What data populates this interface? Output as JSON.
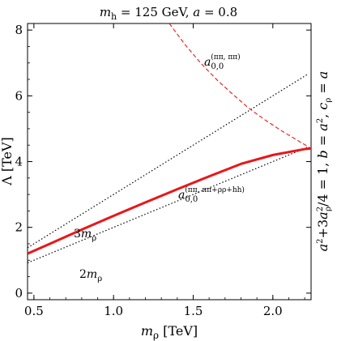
{
  "chart_data": {
    "type": "line",
    "title_prefix": "m",
    "title_sub": "h",
    "title_rest": " = 125 GeV, ",
    "title_a": "a",
    "title_a_rest": " = 0.8",
    "xlabel_var": "m",
    "xlabel_sub": "ρ",
    "xlabel_unit": " [TeV]",
    "ylabel": "Λ [TeV]",
    "right_label": "a²+3a²ρ/4 = 1, b = a², cρ = a",
    "right_label_parts": {
      "p1": "a",
      "p1_sup": "2",
      "p2": "+3",
      "p3": "a",
      "p3_sup": "2",
      "p3_sub": "ρ",
      "p4": "/4 = 1, ",
      "p5": "b",
      "p6": " = ",
      "p7": "a",
      "p7_sup": "2",
      "p8": ", ",
      "p9": "c",
      "p9_sub": "ρ",
      "p10": " = ",
      "p11": "a"
    },
    "xlim": [
      0.46,
      2.24
    ],
    "ylim": [
      -0.2,
      8.2
    ],
    "xticks": [
      0.5,
      1.0,
      1.5,
      2.0
    ],
    "xtick_labels": [
      "0.5",
      "1.0",
      "1.5",
      "2.0"
    ],
    "yticks": [
      0,
      2,
      4,
      6,
      8
    ],
    "ytick_labels": [
      "0",
      "2",
      "4",
      "6",
      "8"
    ],
    "grid": false,
    "series": [
      {
        "name": "3mρ",
        "color": "#000000",
        "style": "dotted",
        "x": [
          0.46,
          2.22
        ],
        "y": [
          1.38,
          6.66
        ]
      },
      {
        "name": "2mρ",
        "color": "#000000",
        "style": "dotted",
        "x": [
          0.46,
          2.22
        ],
        "y": [
          0.92,
          4.44
        ]
      },
      {
        "name": "a0,0 (ππ, ππ+ρρ+hh)",
        "color": "#e8171a",
        "style": "solid-thick",
        "x": [
          0.46,
          0.6,
          0.8,
          1.0,
          1.2,
          1.4,
          1.6,
          1.8,
          2.0,
          2.2,
          2.24
        ],
        "y": [
          1.2,
          1.5,
          1.93,
          2.35,
          2.76,
          3.16,
          3.55,
          3.93,
          4.2,
          4.38,
          4.4
        ]
      },
      {
        "name": "a0,0 (ππ, ππ)",
        "color": "#e8171a",
        "style": "dashed",
        "x": [
          1.35,
          1.45,
          1.55,
          1.65,
          1.75,
          1.85,
          1.95,
          2.05,
          2.15,
          2.24
        ],
        "y": [
          8.2,
          7.55,
          6.98,
          6.48,
          6.04,
          5.62,
          5.27,
          4.95,
          4.66,
          4.4
        ]
      }
    ],
    "annotations": {
      "dashed_label_base": "a",
      "dashed_label_sub": "0,0",
      "dashed_label_sup": "(ππ, ππ)",
      "solid_label_base": "a",
      "solid_label_sub": "0,0",
      "solid_label_sup": "(ππ, ππ+ρρ+hh)",
      "three_m_coef": "3",
      "three_m_var": "m",
      "three_m_sub": "ρ",
      "two_m_coef": "2",
      "two_m_var": "m",
      "two_m_sub": "ρ"
    }
  }
}
